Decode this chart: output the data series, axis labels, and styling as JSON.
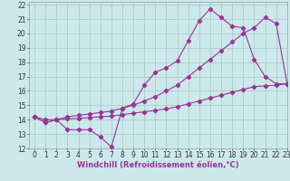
{
  "xlabel": "Windchill (Refroidissement éolien,°C)",
  "bg_color": "#cce8ea",
  "line_color": "#993399",
  "grid_color": "#aacccc",
  "xlim": [
    -0.5,
    23
  ],
  "ylim": [
    12,
    22.2
  ],
  "xticks": [
    0,
    1,
    2,
    3,
    4,
    5,
    6,
    7,
    8,
    9,
    10,
    11,
    12,
    13,
    14,
    15,
    16,
    17,
    18,
    19,
    20,
    21,
    22,
    23
  ],
  "yticks": [
    12,
    13,
    14,
    15,
    16,
    17,
    18,
    19,
    20,
    21,
    22
  ],
  "line1_x": [
    0,
    1,
    2,
    3,
    4,
    5,
    6,
    7,
    8,
    9,
    10,
    11,
    12,
    13,
    14,
    15,
    16,
    17,
    18,
    19,
    20,
    21,
    22,
    23
  ],
  "line1_y": [
    14.2,
    13.8,
    14.0,
    13.3,
    13.3,
    13.3,
    12.8,
    12.1,
    14.8,
    15.1,
    16.4,
    17.3,
    17.6,
    18.1,
    19.5,
    20.9,
    21.7,
    21.1,
    20.5,
    20.4,
    18.2,
    17.0,
    16.5,
    16.5
  ],
  "line2_x": [
    0,
    1,
    2,
    3,
    4,
    5,
    6,
    7,
    8,
    9,
    10,
    11,
    12,
    13,
    14,
    15,
    16,
    17,
    18,
    19,
    20,
    21,
    22,
    23
  ],
  "line2_y": [
    14.2,
    13.8,
    14.0,
    14.2,
    14.3,
    14.4,
    14.5,
    14.6,
    14.8,
    15.0,
    15.3,
    15.6,
    16.0,
    16.4,
    17.0,
    17.6,
    18.2,
    18.8,
    19.4,
    20.0,
    20.4,
    21.1,
    20.7,
    16.5
  ],
  "line3_x": [
    0,
    1,
    2,
    3,
    4,
    5,
    6,
    7,
    8,
    9,
    10,
    11,
    12,
    13,
    14,
    15,
    16,
    17,
    18,
    19,
    20,
    21,
    22,
    23
  ],
  "line3_y": [
    14.2,
    14.0,
    14.0,
    14.05,
    14.1,
    14.15,
    14.2,
    14.25,
    14.35,
    14.45,
    14.55,
    14.65,
    14.75,
    14.9,
    15.1,
    15.3,
    15.5,
    15.7,
    15.9,
    16.1,
    16.3,
    16.35,
    16.4,
    16.5
  ],
  "xlabel_fontsize": 6,
  "tick_fontsize": 5.5,
  "linewidth": 0.8,
  "markersize": 2.2
}
